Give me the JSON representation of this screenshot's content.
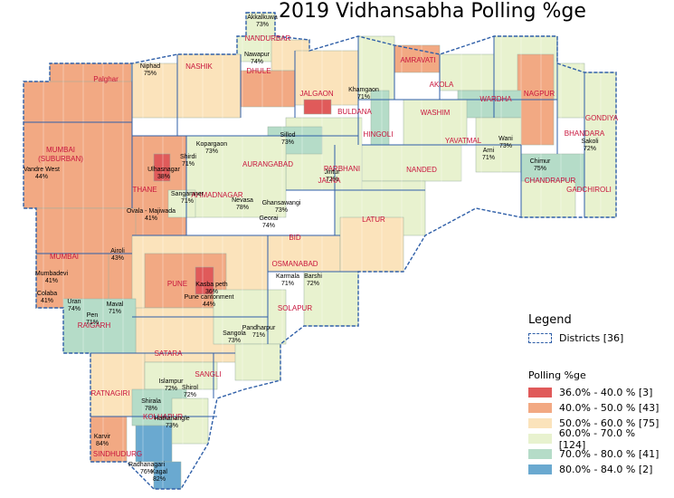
{
  "title": "2019 Vidhansabha Polling %ge",
  "legend": {
    "heading": "Legend",
    "districts_label": "Districts [36]",
    "polling_heading": "Polling %ge",
    "classes": [
      {
        "label": "36.0% - 40.0 % [3]",
        "color": "#e05a5a"
      },
      {
        "label": "40.0% - 50.0 % [43]",
        "color": "#f2a983"
      },
      {
        "label": "50.0% - 60.0 % [75]",
        "color": "#fbe3bb"
      },
      {
        "label": "60.0% - 70.0 % [124]",
        "color": "#e8f2cf"
      },
      {
        "label": "70.0% - 80.0 % [41]",
        "color": "#b5dcc8"
      },
      {
        "label": "80.0% - 84.0 % [2]",
        "color": "#6aa9d0"
      }
    ]
  },
  "districts": [
    "NANDURBAR",
    "DHULE",
    "JALGAON",
    "BULDANA",
    "AMRAVATI",
    "AKOLA",
    "WASHIM",
    "WARDHA",
    "NAGPUR",
    "GONDIYA",
    "BHANDARA",
    "YAVATMAL",
    "CHANDRAPUR",
    "GADCHIROLI",
    "HINGOLI",
    "NANDED",
    "PARBHANI",
    "JALNA",
    "AURANGABAD",
    "NASHIK",
    "Palghar",
    "MUMBAI (SUBURBAN)",
    "THANE",
    "AHMADNAGAR",
    "BID",
    "LATUR",
    "OSMANABAD",
    "MUMBAI",
    "PUNE",
    "RAIGARH",
    "SOLAPUR",
    "SATARA",
    "SANGLI",
    "RATNAGIRI",
    "KOLHAPUR",
    "SINDHUDURG"
  ],
  "constituencies": [
    {
      "name": "Akkalkuwa",
      "value": "73%"
    },
    {
      "name": "Nawapur",
      "value": "74%"
    },
    {
      "name": "Niphad",
      "value": "75%"
    },
    {
      "name": "Khamgaon",
      "value": "71%"
    },
    {
      "name": "Wani",
      "value": "73%"
    },
    {
      "name": "Sakoli",
      "value": "72%"
    },
    {
      "name": "Arni",
      "value": "71%"
    },
    {
      "name": "Chimur",
      "value": "75%"
    },
    {
      "name": "Sillod",
      "value": "73%"
    },
    {
      "name": "Kopargaon",
      "value": "73%"
    },
    {
      "name": "Shirdi",
      "value": "71%"
    },
    {
      "name": "Vandre West",
      "value": "44%"
    },
    {
      "name": "Ulhasnagar",
      "value": "38%"
    },
    {
      "name": "Sangamner",
      "value": "71%"
    },
    {
      "name": "Nevasa",
      "value": "78%"
    },
    {
      "name": "Jintur",
      "value": "72%"
    },
    {
      "name": "Ghansawangi",
      "value": "73%"
    },
    {
      "name": "Georai",
      "value": "74%"
    },
    {
      "name": "Ovala - Majiwada",
      "value": "41%"
    },
    {
      "name": "Airoli",
      "value": "43%"
    },
    {
      "name": "Mumbadevi",
      "value": "41%"
    },
    {
      "name": "Colaba",
      "value": "41%"
    },
    {
      "name": "Uran",
      "value": "74%"
    },
    {
      "name": "Pen",
      "value": "71%"
    },
    {
      "name": "Maval",
      "value": "71%"
    },
    {
      "name": "Kasba peth",
      "value": "36%"
    },
    {
      "name": "Pune cantonment",
      "value": "44%"
    },
    {
      "name": "Karmala",
      "value": "71%"
    },
    {
      "name": "Barshi",
      "value": "72%"
    },
    {
      "name": "Sangola",
      "value": "73%"
    },
    {
      "name": "Pandharpur",
      "value": "71%"
    },
    {
      "name": "Islampur",
      "value": "72%"
    },
    {
      "name": "Shirol",
      "value": "72%"
    },
    {
      "name": "Shirala",
      "value": "78%"
    },
    {
      "name": "Hatkanangle",
      "value": "73%"
    },
    {
      "name": "Karvir",
      "value": "84%"
    },
    {
      "name": "Radhanagari",
      "value": "76%"
    },
    {
      "name": "Kagal",
      "value": "82%"
    }
  ]
}
